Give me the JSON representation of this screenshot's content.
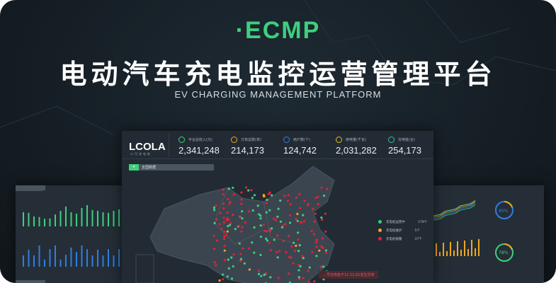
{
  "hero": {
    "logo": "·ECMP",
    "title": "电动汽车充电监控运营管理平台",
    "subtitle": "EV CHARGING MANAGEMENT PLATFORM"
  },
  "colors": {
    "accent": "#3ecf7f",
    "warning": "#f0a820",
    "alarm": "#e0223a",
    "blue": "#2f7fdc"
  },
  "dashboard": {
    "brand": "LCOLA",
    "brand_sub": "小可充电桩",
    "kpis": [
      {
        "icon": "revenue-icon",
        "label": "平台总收入(元)",
        "value": "2,341,248",
        "color": "#3ecf7f"
      },
      {
        "icon": "cart-icon",
        "label": "订单总数(单)",
        "value": "214,173",
        "color": "#f0a820"
      },
      {
        "icon": "user-icon",
        "label": "用户数(个)",
        "value": "124,742",
        "color": "#2f7fdc"
      },
      {
        "icon": "battery-icon",
        "label": "用电量(千瓦)",
        "value": "2,031,282",
        "color": "#e0c020"
      },
      {
        "icon": "charger-icon",
        "label": "充电桩(台)",
        "value": "254,173",
        "color": "#2fc0b0"
      }
    ],
    "region": "全国数据",
    "legend": [
      {
        "label": "充电桩运营中",
        "count": "179个",
        "color": "#3ecf7f"
      },
      {
        "label": "充电桩维护",
        "count": "5个",
        "color": "#f0a820"
      },
      {
        "label": "充电桩报警",
        "count": "37个",
        "color": "#e0223a"
      }
    ],
    "alert": "…号充电桩于11:12:01发生异常"
  },
  "left_panel": {
    "green_bars": [
      50,
      48,
      35,
      33,
      27,
      28,
      42,
      55,
      70,
      50,
      45,
      65,
      75,
      58,
      55,
      50,
      48,
      55,
      60
    ],
    "blue_bars": [
      40,
      60,
      40,
      75,
      25,
      62,
      75,
      25,
      42,
      68,
      52,
      75,
      62,
      40,
      60,
      40,
      62,
      40,
      62
    ]
  },
  "right_panel": {
    "gauges": [
      {
        "value": "80%",
        "pct": 80
      },
      {
        "value": "78%",
        "pct": 78
      }
    ]
  }
}
